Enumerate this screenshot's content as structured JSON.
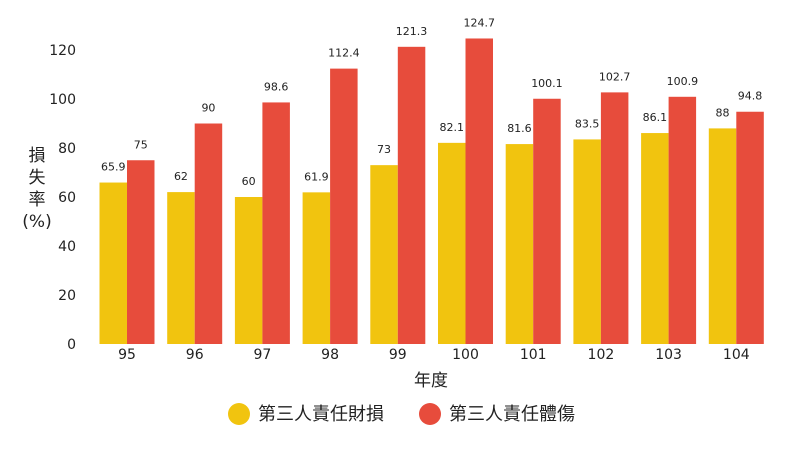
{
  "chart_data": {
    "type": "bar",
    "xlabel": "年度",
    "ylabel_lines": [
      "損",
      "失",
      "率",
      "(%)"
    ],
    "categories": [
      "95",
      "96",
      "97",
      "98",
      "99",
      "100",
      "101",
      "102",
      "103",
      "104"
    ],
    "ylim": [
      0,
      120
    ],
    "yticks": [
      0,
      20,
      40,
      60,
      80,
      100,
      120
    ],
    "grid": false,
    "legend_position": "bottom",
    "series": [
      {
        "name": "第三人責任財損",
        "color": "#f1c40f",
        "values": [
          65.9,
          62,
          60,
          61.9,
          73,
          82.1,
          81.6,
          83.5,
          86.1,
          88
        ]
      },
      {
        "name": "第三人責任體傷",
        "color": "#e74c3c",
        "values": [
          75,
          90,
          98.6,
          112.4,
          121.3,
          124.7,
          100.1,
          102.7,
          100.9,
          94.8
        ]
      }
    ]
  }
}
